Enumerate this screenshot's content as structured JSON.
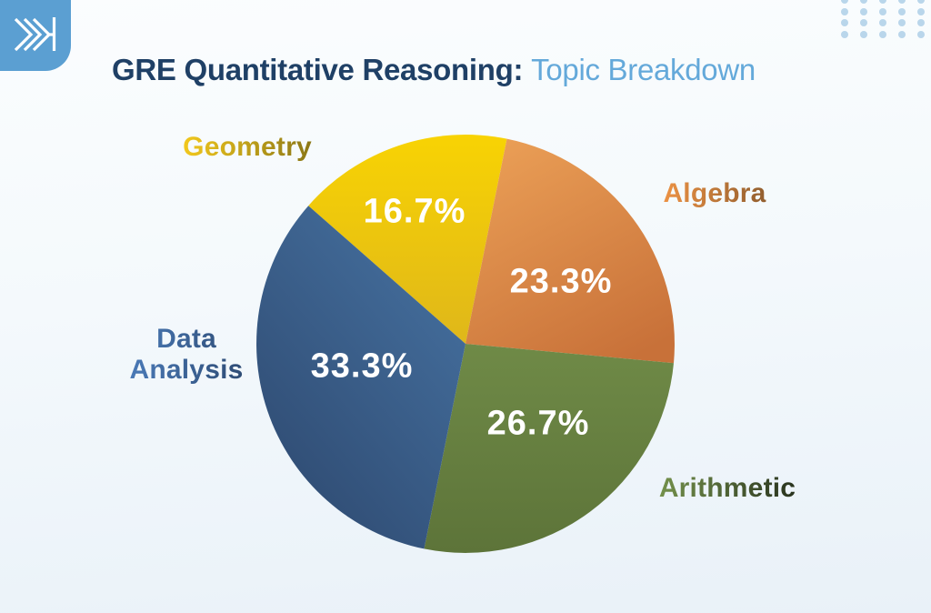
{
  "header": {
    "title_strong": "GRE Quantitative Reasoning:",
    "title_light": "Topic Breakdown"
  },
  "logo": {
    "icon": "arrow-chevron-logo",
    "background_color": "#5b9fd2",
    "glyph_color": "#ffffff"
  },
  "decor": {
    "dot_color": "#b9d6eb",
    "dot_rows": 4,
    "dot_cols": 5
  },
  "chart_data": {
    "type": "pie",
    "title": "GRE Quantitative Reasoning: Topic Breakdown",
    "unit": "percent",
    "direction": "clockwise",
    "start_angle_deg_from_top": -48.7,
    "legend_position": "around-pie",
    "slices": [
      {
        "id": "geometry",
        "label": "Geometry",
        "display_label": "Geometry",
        "value": 16.7,
        "pct_label": "16.7%",
        "grad": {
          "from": "#f8d303",
          "to": "#dfb71a",
          "x1": 0.5,
          "y1": 0,
          "x2": 0.5,
          "y2": 1
        },
        "label_grad_from": "#f2c81d",
        "label_grad_to": "#8b7716"
      },
      {
        "id": "algebra",
        "label": "Algebra",
        "display_label": "Algebra",
        "value": 23.3,
        "pct_label": "23.3%",
        "grad": {
          "from": "#e99d55",
          "to": "#c87139",
          "x1": 0.25,
          "y1": 0,
          "x2": 0.75,
          "y2": 1
        },
        "label_grad_from": "#ec9244",
        "label_grad_to": "#925e2e"
      },
      {
        "id": "arithmetic",
        "label": "Arithmetic",
        "display_label": "Arithmetic",
        "value": 26.7,
        "pct_label": "26.7%",
        "grad": {
          "from": "#6f8a47",
          "to": "#5d7439",
          "x1": 0.5,
          "y1": 0,
          "x2": 0.5,
          "y2": 1
        },
        "label_grad_from": "#74914b",
        "label_grad_to": "#29331e"
      },
      {
        "id": "data_analysis",
        "label": "Data Analysis",
        "display_label": "Data\nAnalysis",
        "value": 33.3,
        "pct_label": "33.3%",
        "grad": {
          "from": "#45709f",
          "to": "#2f4b72",
          "x1": 0.85,
          "y1": 0.05,
          "x2": 0.2,
          "y2": 0.95
        },
        "label_grad_from": "#4a7ab7",
        "label_grad_to": "#2e4c75"
      }
    ]
  }
}
